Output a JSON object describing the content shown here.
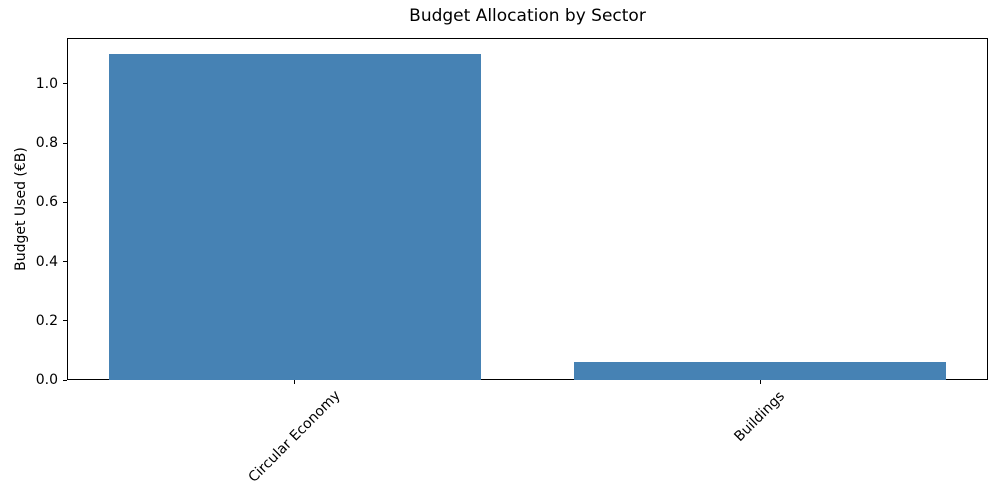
{
  "chart_data": {
    "type": "bar",
    "title": "Budget Allocation by Sector",
    "ylabel": "Budget Used (€B)",
    "xlabel": "",
    "categories": [
      "Circular Economy",
      "Buildings"
    ],
    "values": [
      1.1,
      0.06
    ],
    "yticks": [
      0.0,
      0.2,
      0.4,
      0.6,
      0.8,
      1.0
    ],
    "ytick_labels": [
      "0.0",
      "0.2",
      "0.4",
      "0.6",
      "0.8",
      "1.0"
    ],
    "ylim": [
      0,
      1.155
    ],
    "bar_color": "#4682b4",
    "axis_color": "#000000",
    "grid": false,
    "x_tick_rotation": 45,
    "bar_width_fraction": 0.8
  }
}
